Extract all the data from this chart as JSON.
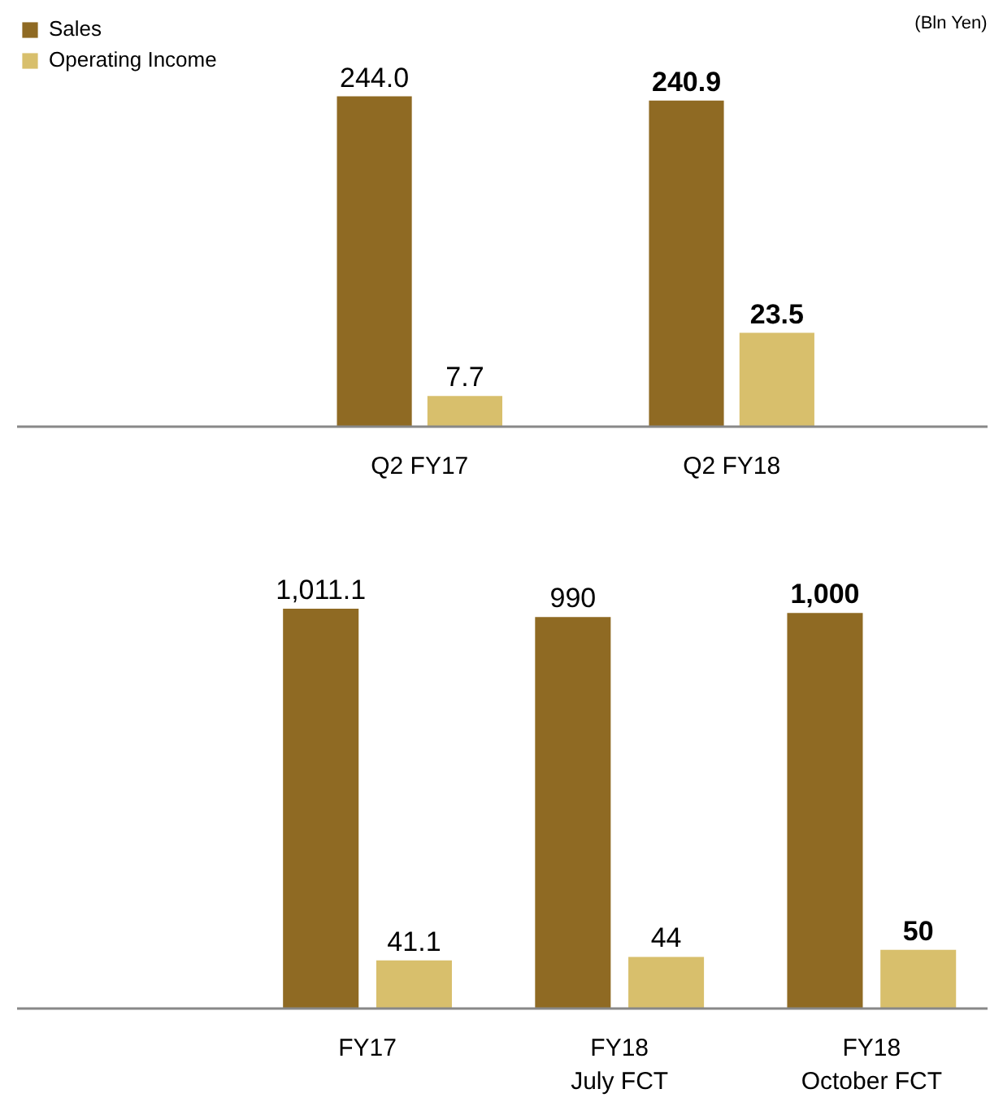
{
  "chart_data": [
    {
      "type": "bar",
      "categories": [
        "Q2 FY17",
        "Q2 FY18"
      ],
      "legend": "top left",
      "data_labels": true,
      "annotations": [
        "(Bln Yen)"
      ],
      "series": [
        {
          "name": "Sales",
          "color": "#8f6a23",
          "values": [
            244.0,
            240.9
          ],
          "value_labels": [
            "244.0",
            "240.9"
          ]
        },
        {
          "name": "Operating Income",
          "color": "#d8bf6c",
          "axis": "y2",
          "values": [
            7.7,
            23.5
          ],
          "value_labels": [
            "7.7",
            "23.5"
          ]
        }
      ]
    },
    {
      "type": "bar",
      "categories": [
        "FY17",
        "FY18\nJuly FCT",
        "FY18\nOctober FCT"
      ],
      "data_labels": true,
      "series": [
        {
          "color": "#8f6a23",
          "values": [
            1011.1,
            990,
            1000
          ],
          "value_labels": [
            "1,011.1",
            "990",
            "1,000"
          ]
        },
        {
          "color": "#d8bf6c",
          "axis": "y2",
          "values": [
            41.1,
            44,
            50
          ],
          "value_labels": [
            "41.1",
            "44",
            "50"
          ]
        }
      ]
    }
  ]
}
